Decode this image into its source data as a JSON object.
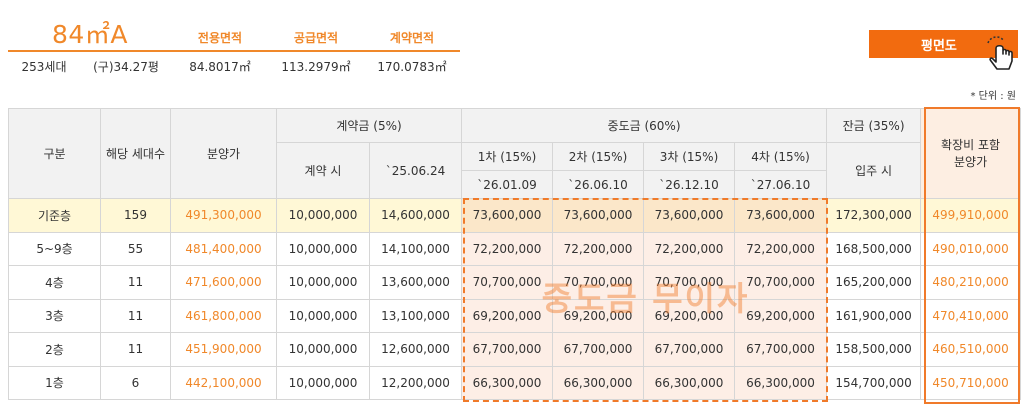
{
  "header": {
    "type_name": "84㎡A",
    "area_labels": [
      "전용면적",
      "공급면적",
      "계약면적"
    ],
    "units": "253세대",
    "old_pyeong": "(구)34.27평",
    "area_values": [
      "84.8017㎡",
      "113.2979㎡",
      "170.0783㎡"
    ]
  },
  "floor_plan_button": "평면도",
  "unit_note": "* 단위 : 원",
  "table": {
    "col_division": "구분",
    "col_units": "해당 세대수",
    "col_price": "분양가",
    "col_deposit": "계약금 (5%)",
    "col_deposit_on_contract": "계약 시",
    "col_deposit_date": "`25.06.24",
    "col_middle": "중도금 (60%)",
    "middle_installments": [
      "1차 (15%)",
      "2차 (15%)",
      "3차 (15%)",
      "4차 (15%)"
    ],
    "middle_dates": [
      "`26.01.09",
      "`26.06.10",
      "`26.12.10",
      "`27.06.10"
    ],
    "col_balance": "잔금 (35%)",
    "col_balance_on_move": "입주 시",
    "col_expansion": "확장비 포함 분양가",
    "rows": [
      {
        "floor": "기준층",
        "units": "159",
        "price": "491,300,000",
        "deposit1": "10,000,000",
        "deposit2": "14,600,000",
        "m1": "73,600,000",
        "m2": "73,600,000",
        "m3": "73,600,000",
        "m4": "73,600,000",
        "balance": "172,300,000",
        "expansion": "499,910,000"
      },
      {
        "floor": "5~9층",
        "units": "55",
        "price": "481,400,000",
        "deposit1": "10,000,000",
        "deposit2": "14,100,000",
        "m1": "72,200,000",
        "m2": "72,200,000",
        "m3": "72,200,000",
        "m4": "72,200,000",
        "balance": "168,500,000",
        "expansion": "490,010,000"
      },
      {
        "floor": "4층",
        "units": "11",
        "price": "471,600,000",
        "deposit1": "10,000,000",
        "deposit2": "13,600,000",
        "m1": "70,700,000",
        "m2": "70,700,000",
        "m3": "70,700,000",
        "m4": "70,700,000",
        "balance": "165,200,000",
        "expansion": "480,210,000"
      },
      {
        "floor": "3층",
        "units": "11",
        "price": "461,800,000",
        "deposit1": "10,000,000",
        "deposit2": "13,100,000",
        "m1": "69,200,000",
        "m2": "69,200,000",
        "m3": "69,200,000",
        "m4": "69,200,000",
        "balance": "161,900,000",
        "expansion": "470,410,000"
      },
      {
        "floor": "2층",
        "units": "11",
        "price": "451,900,000",
        "deposit1": "10,000,000",
        "deposit2": "12,600,000",
        "m1": "67,700,000",
        "m2": "67,700,000",
        "m3": "67,700,000",
        "m4": "67,700,000",
        "balance": "158,500,000",
        "expansion": "460,510,000"
      },
      {
        "floor": "1층",
        "units": "6",
        "price": "442,100,000",
        "deposit1": "10,000,000",
        "deposit2": "12,200,000",
        "m1": "66,300,000",
        "m2": "66,300,000",
        "m3": "66,300,000",
        "m4": "66,300,000",
        "balance": "154,700,000",
        "expansion": "450,710,000"
      }
    ]
  },
  "middle_overlay_text": "중도금 무이자",
  "icons": {
    "plan_button_icon": "hand-pointer-icon"
  },
  "colors": {
    "accent": "#f0882a",
    "button": "#f26b0f",
    "highlight_row": "#fff8d6"
  }
}
